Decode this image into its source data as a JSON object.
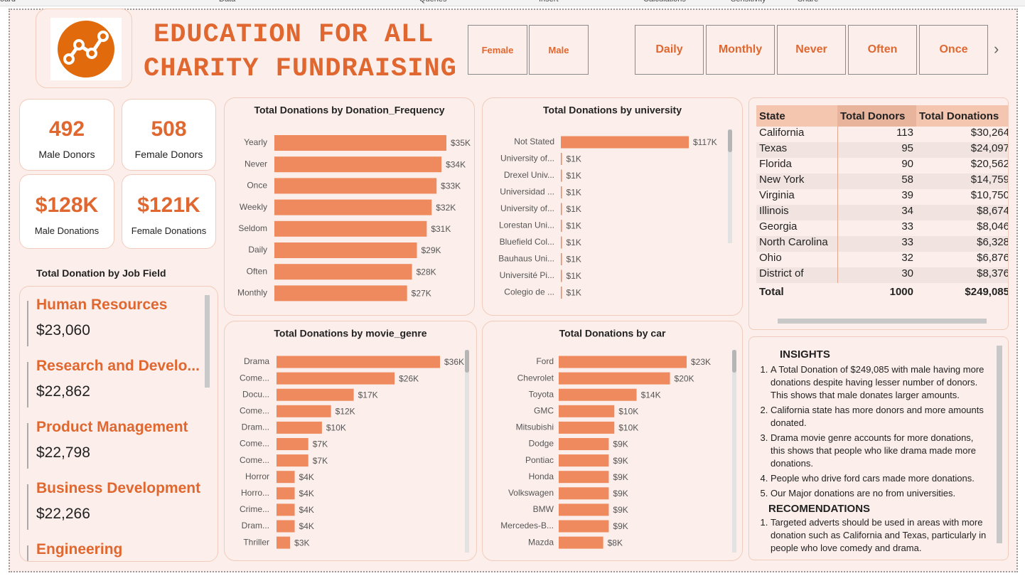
{
  "ribbon": {
    "tabs": [
      "oard",
      "Data",
      "Queries",
      "Insert",
      "Calculations",
      "Sensitivity",
      "Share"
    ]
  },
  "header": {
    "title_line1": "EDUCATION FOR ALL",
    "title_line2": "CHARITY FUNDRAISING"
  },
  "slicers": {
    "gender": [
      "Female",
      "Male"
    ],
    "frequency": [
      "Daily",
      "Monthly",
      "Never",
      "Often",
      "Once"
    ]
  },
  "kpis": [
    {
      "value": "492",
      "label": "Male Donors"
    },
    {
      "value": "508",
      "label": "Female Donors"
    },
    {
      "value": "$128K",
      "label": "Male Donations"
    },
    {
      "value": "$121K",
      "label": "Female Donations"
    }
  ],
  "job_field": {
    "title": "Total Donation by Job Field",
    "items": [
      {
        "name": "Human Resources",
        "value": "$23,060"
      },
      {
        "name": "Research and Develo...",
        "value": "$22,862"
      },
      {
        "name": "Product Management",
        "value": "$22,798"
      },
      {
        "name": "Business Development",
        "value": "$22,266"
      },
      {
        "name": "Engineering"
      }
    ]
  },
  "chart_data": [
    {
      "type": "bar",
      "title": "Total Donations by Donation_Frequency",
      "color": "#ee8a5e",
      "categories": [
        "Yearly",
        "Never",
        "Once",
        "Weekly",
        "Seldom",
        "Daily",
        "Often",
        "Monthly"
      ],
      "values": [
        35,
        34,
        33,
        32,
        31,
        29,
        28,
        27
      ],
      "value_labels": [
        "$35K",
        "$34K",
        "$33K",
        "$32K",
        "$31K",
        "$29K",
        "$28K",
        "$27K"
      ]
    },
    {
      "type": "bar",
      "title": "Total Donations by university",
      "color": "#ee8a5e",
      "categories": [
        "Not Stated",
        "University of...",
        "Drexel Univ...",
        "Universidad ...",
        "University of...",
        "Lorestan Uni...",
        "Bluefield Col...",
        "Bauhaus Uni...",
        "Université Pi...",
        "Colegio de ..."
      ],
      "values": [
        117,
        1,
        1,
        1,
        1,
        1,
        1,
        1,
        1,
        1
      ],
      "value_labels": [
        "$117K",
        "$1K",
        "$1K",
        "$1K",
        "$1K",
        "$1K",
        "$1K",
        "$1K",
        "$1K",
        "$1K"
      ]
    },
    {
      "type": "bar",
      "title": "Total Donations by movie_genre",
      "color": "#ee8a5e",
      "categories": [
        "Drama",
        "Come...",
        "Docu...",
        "Come...",
        "Dram...",
        "Come...",
        "Come...",
        "Horror",
        "Horro...",
        "Crime...",
        "Dram...",
        "Thriller"
      ],
      "values": [
        36,
        26,
        17,
        12,
        10,
        7,
        7,
        4,
        4,
        4,
        4,
        3
      ],
      "value_labels": [
        "$36K",
        "$26K",
        "$17K",
        "$12K",
        "$10K",
        "$7K",
        "$7K",
        "$4K",
        "$4K",
        "$4K",
        "$4K",
        "$3K"
      ]
    },
    {
      "type": "bar",
      "title": "Total Donations by car",
      "color": "#ee8a5e",
      "categories": [
        "Ford",
        "Chevrolet",
        "Toyota",
        "GMC",
        "Mitsubishi",
        "Dodge",
        "Pontiac",
        "Honda",
        "Volkswagen",
        "BMW",
        "Mercedes-B...",
        "Mazda"
      ],
      "values": [
        23,
        20,
        14,
        10,
        10,
        9,
        9,
        9,
        9,
        9,
        9,
        8
      ],
      "value_labels": [
        "$23K",
        "$20K",
        "$14K",
        "$10K",
        "$10K",
        "$9K",
        "$9K",
        "$9K",
        "$9K",
        "$9K",
        "$9K",
        "$8K"
      ]
    }
  ],
  "table": {
    "columns": [
      "State",
      "Total Donors",
      "Total Donations"
    ],
    "rows": [
      [
        "California",
        "113",
        "$30,264"
      ],
      [
        "Texas",
        "95",
        "$24,097"
      ],
      [
        "Florida",
        "90",
        "$20,562"
      ],
      [
        "New York",
        "58",
        "$14,759"
      ],
      [
        "Virginia",
        "39",
        "$10,750"
      ],
      [
        "Illinois",
        "34",
        "$8,674"
      ],
      [
        "Georgia",
        "33",
        "$8,046"
      ],
      [
        "North Carolina",
        "33",
        "$6,328"
      ],
      [
        "Ohio",
        "32",
        "$6,876"
      ],
      [
        "District of",
        "30",
        "$8,376"
      ]
    ],
    "total": [
      "Total",
      "1000",
      "$249,085"
    ]
  },
  "insights": {
    "title": "INSIGHTS",
    "items": [
      "A Total Donation of $249,085 with male having more donations despite having lesser number of donors. This shows that male donates larger amounts.",
      "California state has more donors and more amounts donated.",
      "Drama movie genre accounts for more donations, this shows that people who like drama made more donations.",
      "People who drive ford cars made more donations.",
      "Our Major donations are no from universities."
    ],
    "rec_title": "RECOMENDATIONS",
    "rec_items": [
      "Targeted adverts should be used in areas with more donation such as California and Texas, particularly in people who love comedy and drama."
    ]
  }
}
